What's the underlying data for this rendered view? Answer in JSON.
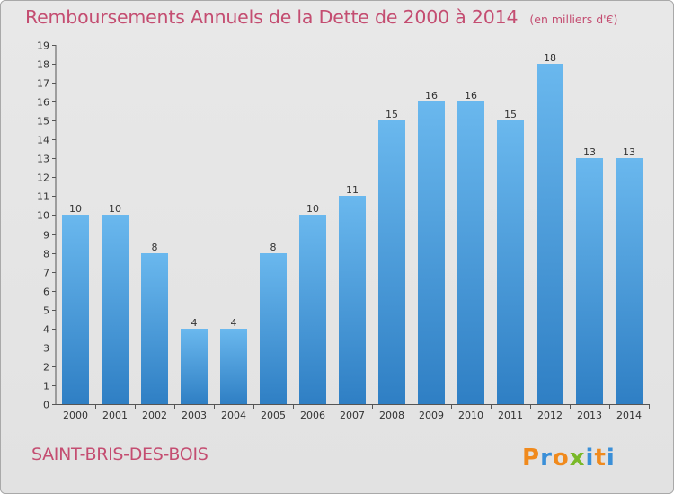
{
  "header": {
    "title": "Remboursements Annuels de la Dette de 2000 à 2014",
    "unit": "(en milliers d'€)"
  },
  "footer": {
    "city": "SAINT-BRIS-DES-BOIS",
    "logo_text": "Proxiti"
  },
  "colors": {
    "title": "#c44d71",
    "bar_light": "#6ab8ee",
    "bar_dark": "#2f7fc4",
    "background": "#e5e5e5",
    "logo_letters": [
      "#f08a1d",
      "#3a8fd8",
      "#f08a1d",
      "#7ab929",
      "#3a8fd8",
      "#f08a1d",
      "#3a8fd8"
    ]
  },
  "chart_data": {
    "type": "bar",
    "title": "Remboursements Annuels de la Dette de 2000 à 2014",
    "xlabel": "",
    "ylabel": "",
    "categories": [
      "2000",
      "2001",
      "2002",
      "2003",
      "2004",
      "2005",
      "2006",
      "2007",
      "2008",
      "2009",
      "2010",
      "2011",
      "2012",
      "2013",
      "2014"
    ],
    "values": [
      10,
      10,
      8,
      4,
      4,
      8,
      10,
      11,
      15,
      16,
      16,
      15,
      18,
      13,
      13
    ],
    "ylim": [
      0,
      19
    ],
    "yticks": [
      0,
      1,
      2,
      3,
      4,
      5,
      6,
      7,
      8,
      9,
      10,
      11,
      12,
      13,
      14,
      15,
      16,
      17,
      18,
      19
    ],
    "grid": false,
    "legend": "none"
  }
}
